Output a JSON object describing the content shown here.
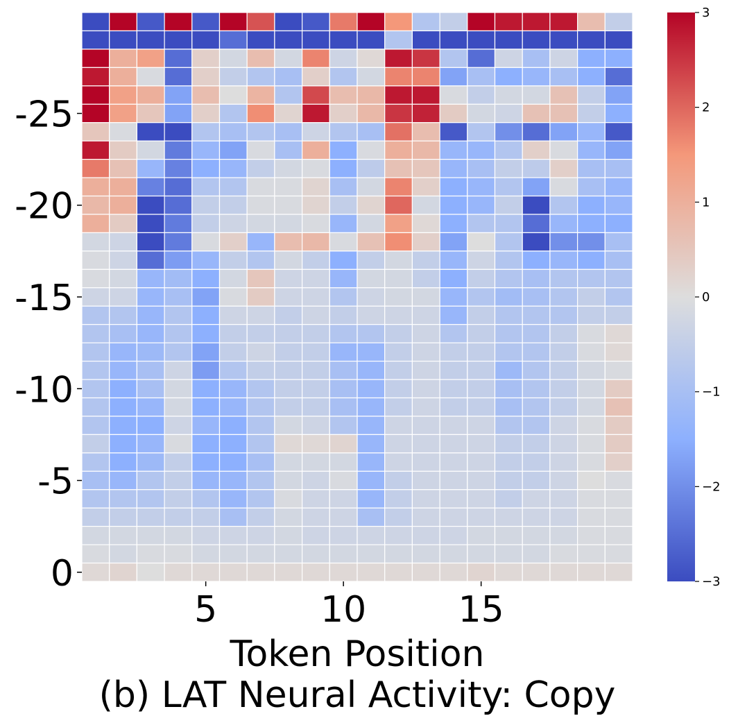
{
  "chart_data": {
    "type": "heatmap",
    "title": "",
    "caption": "(b) LAT Neural Activity: Copy",
    "xlabel": "Token Position",
    "ylabel": "",
    "x_ticks": [
      5,
      10,
      15
    ],
    "y_ticks": [
      0,
      -5,
      -10,
      -15,
      -20,
      -25
    ],
    "n_cols": 20,
    "n_rows": 31,
    "row_order": "top row is layer -30, bottom row is layer 0",
    "colorbar": {
      "min": -3,
      "max": 3,
      "ticks": [
        3,
        2,
        1,
        0,
        -1,
        -2,
        -3
      ],
      "tick_labels": [
        "3",
        "2",
        "1",
        "0",
        "−1",
        "−2",
        "−3"
      ],
      "colormap": "coolwarm"
    },
    "grid_lines": true,
    "values": [
      [
        -3,
        3,
        -2.8,
        3,
        -2.8,
        3,
        2.2,
        -3,
        -2.8,
        1.8,
        3,
        1.5,
        -0.8,
        -0.5,
        3,
        2.8,
        2.8,
        2.8,
        0.7,
        -0.5
      ],
      [
        -3,
        -3,
        -3,
        -3,
        -3,
        -2.5,
        -3,
        -3,
        -3,
        -3,
        -3,
        -0.8,
        -3,
        -3,
        -3,
        -3,
        -3,
        -3,
        -3,
        -3
      ],
      [
        3,
        1,
        1.3,
        -2.5,
        0.3,
        -0.2,
        0.7,
        -0.2,
        1.7,
        -0.3,
        0.1,
        2.8,
        2.5,
        -0.8,
        -2.5,
        -0.3,
        -1,
        -0.3,
        -1.5,
        -1.5
      ],
      [
        2.8,
        1,
        -0.1,
        -2.5,
        0.3,
        -0.5,
        -0.8,
        -1,
        0.3,
        -0.8,
        -0.2,
        1.7,
        1.7,
        -1.7,
        -1,
        -1.5,
        -1.3,
        -1,
        -1.5,
        -2.5
      ],
      [
        3,
        1.3,
        1,
        -1.7,
        0.7,
        0,
        0.9,
        -0.8,
        2.3,
        0.7,
        0.8,
        2.8,
        2.8,
        -0.1,
        -0.5,
        -0.2,
        -0.2,
        0.6,
        -0.5,
        -1.7
      ],
      [
        3,
        1.3,
        0.5,
        -1.7,
        0.3,
        -0.8,
        1.6,
        0.2,
        2.8,
        0.3,
        0.8,
        2.5,
        2.7,
        0.4,
        -0.2,
        -0.3,
        0.6,
        0.6,
        -0.5,
        -1.5
      ],
      [
        0.5,
        -0.1,
        -3,
        -3,
        -0.8,
        -1,
        -0.8,
        -1,
        -0.3,
        -0.8,
        -1,
        1.9,
        0.7,
        -2.8,
        -0.8,
        -2,
        -2.5,
        -1.7,
        -1.3,
        -2.8
      ],
      [
        2.8,
        0.4,
        -0.2,
        -2.3,
        -1.3,
        -1.7,
        -0.1,
        -1,
        1,
        -1.5,
        -0.1,
        1,
        0.8,
        -1.3,
        -1.3,
        -0.8,
        0.3,
        -0.1,
        -1.3,
        -1.7
      ],
      [
        1.8,
        0.6,
        -1.3,
        -2.2,
        -1.5,
        -1.3,
        -0.5,
        -0.2,
        -0.1,
        -1.5,
        -0.6,
        0.6,
        0.5,
        -1.3,
        -1,
        -0.5,
        -0.6,
        0.3,
        -1,
        -1
      ],
      [
        1,
        1,
        -2.2,
        -2.5,
        -0.8,
        -0.8,
        -0.1,
        -0.1,
        0.2,
        -1,
        -0.2,
        1.7,
        0.3,
        -1.5,
        -1.3,
        -0.8,
        -1.7,
        -0.1,
        -1,
        -1.3
      ],
      [
        0.8,
        1,
        -3,
        -2.5,
        -0.5,
        -0.5,
        -0.1,
        -0.1,
        0.2,
        -0.5,
        0.2,
        2,
        -0.2,
        -1.5,
        -1.3,
        -0.5,
        -3,
        -0.8,
        -1.5,
        -1.3
      ],
      [
        1,
        0.4,
        -3,
        -2.3,
        -0.5,
        -0.3,
        -0.2,
        -0.2,
        -0.1,
        -1.3,
        -0.2,
        1.3,
        0.1,
        -1.5,
        -0.8,
        -0.8,
        -2.5,
        -1.3,
        -1.5,
        -1.5
      ],
      [
        -0.2,
        -0.3,
        -3,
        -2.3,
        -0.1,
        0.3,
        -1.3,
        0.7,
        0.8,
        -0.1,
        0.6,
        1.6,
        0.3,
        -1.7,
        0,
        -0.8,
        -3,
        -2,
        -2,
        -1
      ],
      [
        -0.1,
        -0.3,
        -2.5,
        -1.8,
        -1.3,
        -0.5,
        -0.8,
        -0.2,
        -0.5,
        -1.5,
        -0.5,
        -0.2,
        -0.5,
        -1.3,
        -0.3,
        -0.8,
        -1.5,
        -1.3,
        -1.5,
        -1
      ],
      [
        -0.1,
        -0.2,
        -1.3,
        -1.1,
        -1.5,
        -0.2,
        0.5,
        -0.3,
        -0.3,
        -1.3,
        -0.2,
        -0.2,
        -0.5,
        -1.5,
        -0.5,
        -0.8,
        -1,
        -0.8,
        -0.8,
        -0.8
      ],
      [
        -0.3,
        -0.3,
        -1.3,
        -1,
        -1.7,
        -0.1,
        0.4,
        -0.3,
        -0.3,
        -0.8,
        -0.3,
        -0.2,
        -0.2,
        -1.3,
        -0.8,
        -1.1,
        -1,
        -0.8,
        -0.5,
        -0.8
      ],
      [
        -0.8,
        -0.8,
        -1.3,
        -0.8,
        -1.5,
        -0.3,
        -0.3,
        -0.5,
        -0.3,
        -0.5,
        -0.3,
        -0.3,
        -0.3,
        -1.3,
        -0.5,
        -0.8,
        -0.8,
        -0.8,
        -0.5,
        -0.5
      ],
      [
        -0.8,
        -1,
        -1.3,
        -0.8,
        -1.5,
        -0.5,
        -0.5,
        -0.5,
        -0.5,
        -0.8,
        -0.8,
        -0.5,
        -0.3,
        -0.8,
        -0.5,
        -0.8,
        -0.8,
        -0.5,
        -0.1,
        0.1
      ],
      [
        -0.8,
        -1.3,
        -1.2,
        -0.8,
        -1.7,
        -0.5,
        -0.3,
        -0.5,
        -0.5,
        -1.3,
        -1.3,
        -0.5,
        -0.3,
        -0.5,
        -0.5,
        -0.8,
        -0.8,
        -0.5,
        -0.1,
        0.1
      ],
      [
        -0.8,
        -1.3,
        -1,
        -0.3,
        -1.8,
        -0.8,
        -0.5,
        -0.5,
        -0.5,
        -1,
        -1.3,
        -0.5,
        -0.3,
        -0.5,
        -0.5,
        -1.2,
        -0.8,
        -0.5,
        -0.2,
        -0.1
      ],
      [
        -0.8,
        -1.5,
        -1,
        -0.2,
        -1.5,
        -1.3,
        -0.8,
        -0.5,
        -0.5,
        -1,
        -1.3,
        -0.5,
        -0.3,
        -0.5,
        -0.5,
        -1,
        -0.8,
        -0.5,
        -0.2,
        0.4
      ],
      [
        -0.8,
        -1.5,
        -1.3,
        -0.2,
        -1.5,
        -1.3,
        -0.8,
        -0.5,
        -0.5,
        -1,
        -1.3,
        -0.5,
        -0.3,
        -0.5,
        -0.5,
        -1,
        -0.8,
        -0.5,
        -0.2,
        0.6
      ],
      [
        -0.8,
        -1.5,
        -1.5,
        -0.3,
        -1.3,
        -1.5,
        -0.8,
        -0.2,
        -0.3,
        -0.8,
        -1.3,
        -0.3,
        -0.3,
        -0.3,
        -0.3,
        -0.8,
        -0.8,
        -0.3,
        -0.1,
        0.4
      ],
      [
        -0.5,
        -1.5,
        -1.3,
        -0.1,
        -1.5,
        -1.5,
        -0.8,
        0.1,
        0.1,
        0.2,
        -1.3,
        -0.3,
        -0.3,
        -0.3,
        -0.3,
        -0.5,
        -0.5,
        -0.3,
        -0.1,
        0.4
      ],
      [
        -0.8,
        -1.5,
        -1.2,
        -0.5,
        -1.5,
        -1.5,
        -1,
        -0.2,
        -0.2,
        -0.2,
        -1.3,
        -0.3,
        -0.3,
        -0.3,
        -0.3,
        -0.5,
        -0.5,
        -0.3,
        -0.1,
        0.3
      ],
      [
        -1,
        -1.3,
        -0.8,
        -0.5,
        -1.3,
        -1.3,
        -0.8,
        -0.2,
        -0.3,
        -0.1,
        -1.3,
        -0.5,
        -0.3,
        -0.3,
        -0.3,
        -0.5,
        -0.5,
        -0.3,
        0,
        -0.1
      ],
      [
        -0.8,
        -0.8,
        -0.8,
        -0.5,
        -0.8,
        -1.3,
        -0.8,
        -0.1,
        -0.3,
        -0.3,
        -1.3,
        -0.5,
        -0.3,
        -0.3,
        -0.3,
        -0.5,
        -0.3,
        -0.3,
        -0.1,
        -0.1
      ],
      [
        -0.5,
        -0.5,
        -0.5,
        -0.5,
        -0.5,
        -1,
        -0.5,
        -0.2,
        -0.3,
        -0.3,
        -1,
        -0.5,
        -0.3,
        -0.3,
        -0.3,
        -0.3,
        -0.3,
        -0.3,
        -0.1,
        -0.1
      ],
      [
        -0.2,
        -0.2,
        -0.2,
        -0.2,
        -0.3,
        -0.3,
        -0.3,
        -0.2,
        -0.3,
        -0.3,
        -0.3,
        -0.3,
        -0.3,
        -0.3,
        -0.2,
        -0.2,
        -0.2,
        -0.2,
        -0.1,
        -0.1
      ],
      [
        -0.1,
        -0.2,
        -0.1,
        -0.1,
        -0.2,
        -0.2,
        -0.2,
        -0.2,
        -0.2,
        -0.2,
        -0.2,
        -0.2,
        -0.2,
        -0.2,
        -0.2,
        -0.2,
        -0.2,
        -0.1,
        -0.1,
        -0.1
      ],
      [
        0.1,
        0.2,
        0,
        0.1,
        0.1,
        0.1,
        0.1,
        0.1,
        0.1,
        0.1,
        0.1,
        0.1,
        0.1,
        0.1,
        0.2,
        0.1,
        0.1,
        0.1,
        0.1,
        0.1
      ]
    ]
  }
}
